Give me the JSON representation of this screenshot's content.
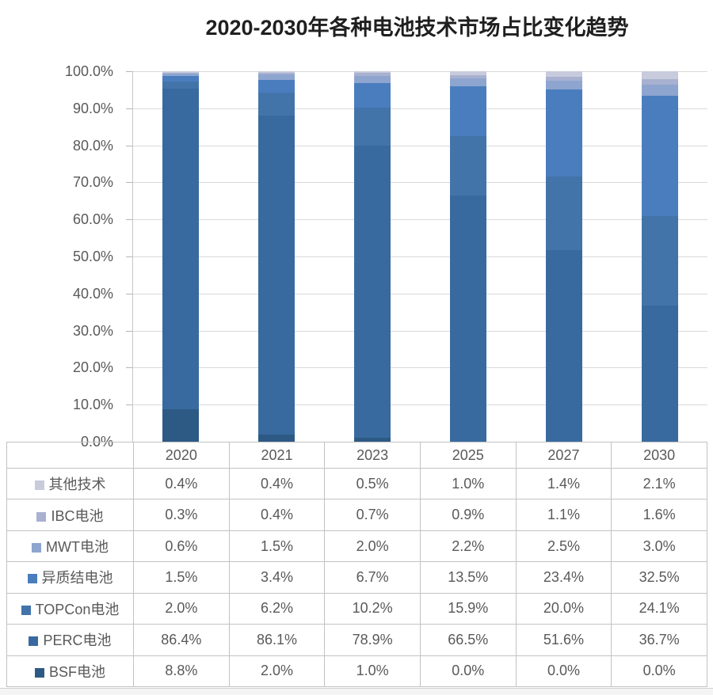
{
  "title": "2020-2030年各种电池技术市场占比变化趋势",
  "chart_data": {
    "type": "bar",
    "stacked": true,
    "title": "2020-2030年各种电池技术市场占比变化趋势",
    "categories": [
      "2020",
      "2021",
      "2023",
      "2025",
      "2027",
      "2030"
    ],
    "series": [
      {
        "name": "其他技术",
        "color": "#c7cbdc",
        "values": [
          0.4,
          0.4,
          0.5,
          1.0,
          1.4,
          2.1
        ]
      },
      {
        "name": "IBC电池",
        "color": "#a8b1d0",
        "values": [
          0.3,
          0.4,
          0.7,
          0.9,
          1.1,
          1.6
        ]
      },
      {
        "name": "MWT电池",
        "color": "#8da5cf",
        "values": [
          0.6,
          1.5,
          2.0,
          2.2,
          2.5,
          3.0
        ]
      },
      {
        "name": "异质结电池",
        "color": "#4a7dbe",
        "values": [
          1.5,
          3.4,
          6.7,
          13.5,
          23.4,
          32.5
        ]
      },
      {
        "name": "TOPCon电池",
        "color": "#4274aa",
        "values": [
          2.0,
          6.2,
          10.2,
          15.9,
          20.0,
          24.1
        ]
      },
      {
        "name": "PERC电池",
        "color": "#386a9f",
        "values": [
          86.4,
          86.1,
          78.9,
          66.5,
          51.6,
          36.7
        ]
      },
      {
        "name": "BSF电池",
        "color": "#2d5a84",
        "values": [
          8.8,
          2.0,
          1.0,
          0.0,
          0.0,
          0.0
        ]
      }
    ],
    "y_ticks": [
      "100.0%",
      "90.0%",
      "80.0%",
      "70.0%",
      "60.0%",
      "50.0%",
      "40.0%",
      "30.0%",
      "20.0%",
      "10.0%",
      "0.0%"
    ],
    "ylim": [
      0,
      100
    ],
    "grid": true,
    "value_suffix": "%",
    "legend_position": "table-below"
  },
  "colors": {
    "gridline": "#d9d9d9",
    "table_border": "#c2c2c2",
    "axis_text": "#595959",
    "title_text": "#1f1f1f"
  }
}
